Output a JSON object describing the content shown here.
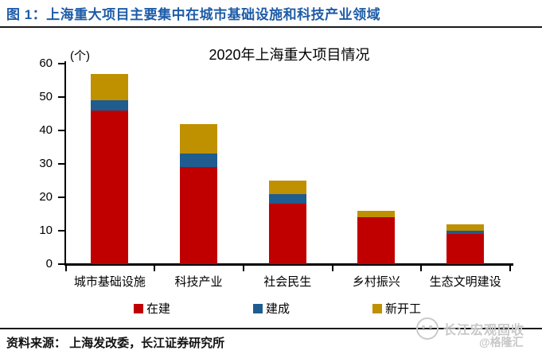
{
  "header": {
    "title": "图 1：上海重大项目主要集中在城市基础设施和科技产业领域"
  },
  "chart_data": {
    "type": "bar",
    "stacked": true,
    "title": "2020年上海重大项目情况",
    "unit_label": "(个)",
    "categories": [
      "城市基础设施",
      "科技产业",
      "社会民生",
      "乡村振兴",
      "生态文明建设"
    ],
    "series": [
      {
        "name": "在建",
        "color": "#C00000",
        "values": [
          46,
          29,
          18,
          14,
          9
        ]
      },
      {
        "name": "建成",
        "color": "#1F5C8F",
        "values": [
          3,
          4,
          3,
          0,
          1
        ]
      },
      {
        "name": "新开工",
        "color": "#BF9000",
        "values": [
          8,
          9,
          4,
          2,
          2
        ]
      }
    ],
    "ylim": [
      0,
      60
    ],
    "ytick_step": 10,
    "grid": false,
    "legend_position": "bottom",
    "axis_color": "#000000"
  },
  "footer": {
    "source": "资料来源： 上海发改委，长江证券研究所"
  },
  "watermark": {
    "line1": "长江宏观固收",
    "line2": "@格隆汇"
  },
  "colors": {
    "header_blue": "#1E5CA8",
    "in_progress_red": "#C00000",
    "completed_blue": "#1F5C8F",
    "new_start_gold": "#BF9000",
    "watermark_gray": "#C8C8C8"
  }
}
